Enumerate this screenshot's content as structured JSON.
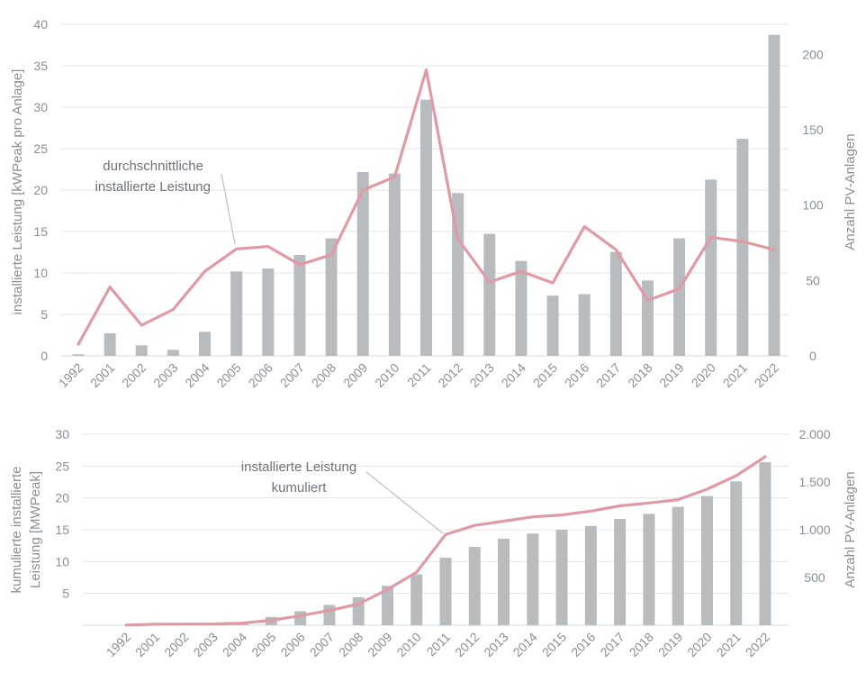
{
  "chart_data": [
    {
      "type": "bar+line",
      "categories": [
        "1992",
        "2001",
        "2002",
        "2003",
        "2004",
        "2005",
        "2006",
        "2007",
        "2008",
        "2009",
        "2010",
        "2011",
        "2012",
        "2013",
        "2014",
        "2015",
        "2016",
        "2017",
        "2018",
        "2019",
        "2020",
        "2021",
        "2022"
      ],
      "ylabel": "installierte Leistung [kWPeak pro Anlage]",
      "y2label": "Anzahl PV-Anlagen",
      "ylim": [
        0,
        40
      ],
      "y2lim": [
        0,
        220
      ],
      "y_ticks": [
        "0",
        "5",
        "10",
        "15",
        "20",
        "25",
        "30",
        "35",
        "40"
      ],
      "y2_ticks": [
        "0",
        "50",
        "100",
        "150",
        "200"
      ],
      "grid": true,
      "series": [
        {
          "axis": "right",
          "kind": "bar",
          "color": "#b8bcbf",
          "values": [
            1,
            15,
            7,
            4,
            16,
            56,
            58,
            67,
            78,
            122,
            121,
            170,
            108,
            81,
            63,
            40,
            41,
            69,
            50,
            78,
            117,
            144,
            213
          ]
        },
        {
          "name": "durchschnittliche installierte Leistung",
          "axis": "left",
          "kind": "line",
          "color": "#df9aa5",
          "values": [
            1.4,
            8.3,
            3.7,
            5.6,
            10.2,
            12.9,
            13.2,
            11.0,
            12.2,
            20.0,
            21.6,
            34.5,
            14.1,
            8.9,
            10.2,
            8.8,
            15.6,
            12.8,
            6.7,
            8.1,
            14.3,
            13.8,
            12.8
          ]
        }
      ],
      "annotation": {
        "lines": [
          "durchschnittliche",
          "installierte Leistung"
        ]
      }
    },
    {
      "type": "bar+line",
      "categories": [
        "1992",
        "2001",
        "2002",
        "2003",
        "2004",
        "2005",
        "2006",
        "2007",
        "2008",
        "2009",
        "2010",
        "2011",
        "2012",
        "2013",
        "2014",
        "2015",
        "2016",
        "2017",
        "2018",
        "2019",
        "2020",
        "2021",
        "2022"
      ],
      "ylabel": "kumulierte installierte Leistung [MWPeak]",
      "ylabel_lines": [
        "kumulierte installierte",
        "Leistung [MWPeak]"
      ],
      "y2label": "Anzahl PV-Anlagen",
      "ylim": [
        0,
        30
      ],
      "y2lim": [
        0,
        2000
      ],
      "y_ticks": [
        "5",
        "10",
        "15",
        "20",
        "25",
        "30"
      ],
      "y2_ticks": [
        "500",
        "1.000",
        "1.500",
        "2.000"
      ],
      "grid": true,
      "series": [
        {
          "axis": "left",
          "kind": "bar",
          "color": "#b8bcbf",
          "values": [
            0,
            0,
            0,
            0,
            0.5,
            1.3,
            2.2,
            3.2,
            4.4,
            6.2,
            8.0,
            10.6,
            12.3,
            13.6,
            14.4,
            15.0,
            15.6,
            16.7,
            17.5,
            18.6,
            20.3,
            22.6,
            25.6
          ]
        },
        {
          "name": "installierte Leistung kumuliert",
          "axis": "right",
          "kind": "line",
          "color": "#df9aa5",
          "values": [
            2,
            10,
            12,
            13,
            22,
            52,
            100,
            155,
            222,
            375,
            555,
            950,
            1045,
            1090,
            1135,
            1155,
            1195,
            1250,
            1280,
            1315,
            1425,
            1565,
            1765
          ]
        }
      ],
      "annotation": {
        "lines": [
          "installierte Leistung",
          "kumuliert"
        ]
      }
    }
  ]
}
